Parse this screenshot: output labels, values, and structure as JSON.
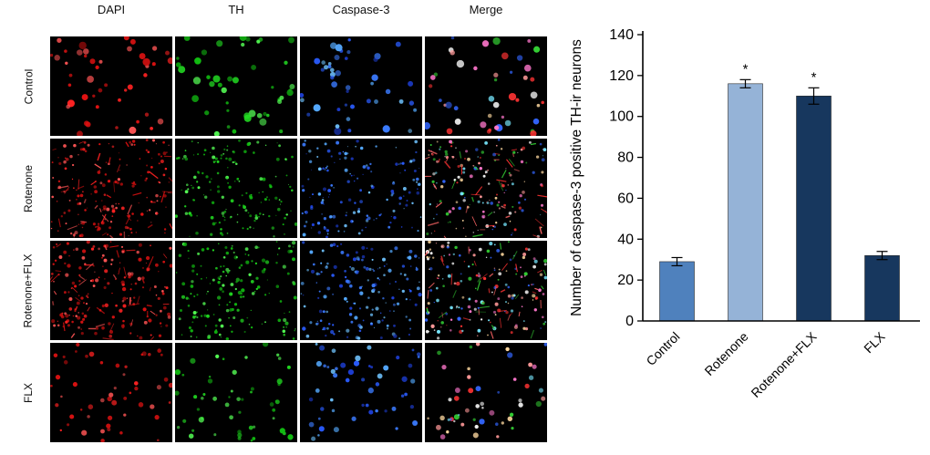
{
  "microscopy": {
    "column_headers": [
      "DAPI",
      "TH",
      "Caspase-3",
      "Merge"
    ],
    "row_labels": [
      "Control",
      "Rotenone",
      "Rotenone+FLX",
      "FLX"
    ]
  },
  "chart_data": {
    "type": "bar",
    "title": "",
    "xlabel": "",
    "ylabel": "Number of caspase-3 positive TH-ir neurons",
    "categories": [
      "Control",
      "Rotenone",
      "Rotenone+FLX",
      "FLX"
    ],
    "values": [
      29,
      116,
      110,
      32
    ],
    "errors": [
      2,
      2,
      4,
      2
    ],
    "annotations": [
      "",
      "*",
      "*",
      ""
    ],
    "bar_colors": [
      "#4f81bd",
      "#95b3d7",
      "#17375e",
      "#17375e"
    ],
    "axis_color": "#000000",
    "ylim": [
      0,
      140
    ],
    "ytick_step": 20,
    "grid": false,
    "legend": false
  }
}
